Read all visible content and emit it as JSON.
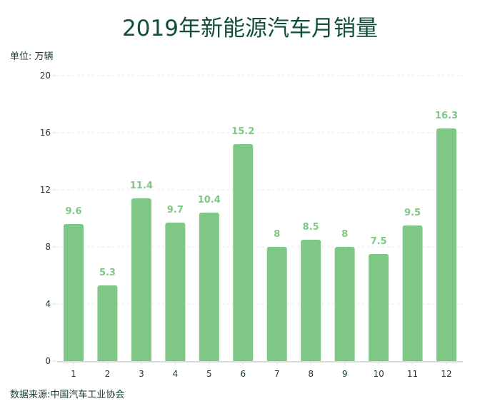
{
  "header": {
    "title": "2019年新能源汽车月销量",
    "unit": "单位: 万辆"
  },
  "footer": {
    "source": "数据来源:中国汽车工业协会"
  },
  "colors": {
    "bar": "#7fc784",
    "title": "#114f3b",
    "grid": "#e6e6e6",
    "axis": "#d9d9d9"
  },
  "chart_data": {
    "type": "bar",
    "title": "2019年新能源汽车月销量",
    "ylabel": "单位: 万辆",
    "xlabel": "",
    "categories": [
      "1",
      "2",
      "3",
      "4",
      "5",
      "6",
      "7",
      "8",
      "9",
      "10",
      "11",
      "12"
    ],
    "values": [
      9.6,
      5.3,
      11.4,
      9.7,
      10.4,
      15.2,
      8,
      8.5,
      8,
      7.5,
      9.5,
      16.3
    ],
    "value_labels": [
      "9.6",
      "5.3",
      "11.4",
      "9.7",
      "10.4",
      "15.2",
      "8",
      "8.5",
      "8",
      "7.5",
      "9.5",
      "16.3"
    ],
    "ylim": [
      0,
      20
    ],
    "yticks": [
      0,
      4,
      8,
      12,
      16,
      20
    ],
    "grid": true,
    "legend": "none",
    "source": "数据来源:中国汽车工业协会"
  }
}
